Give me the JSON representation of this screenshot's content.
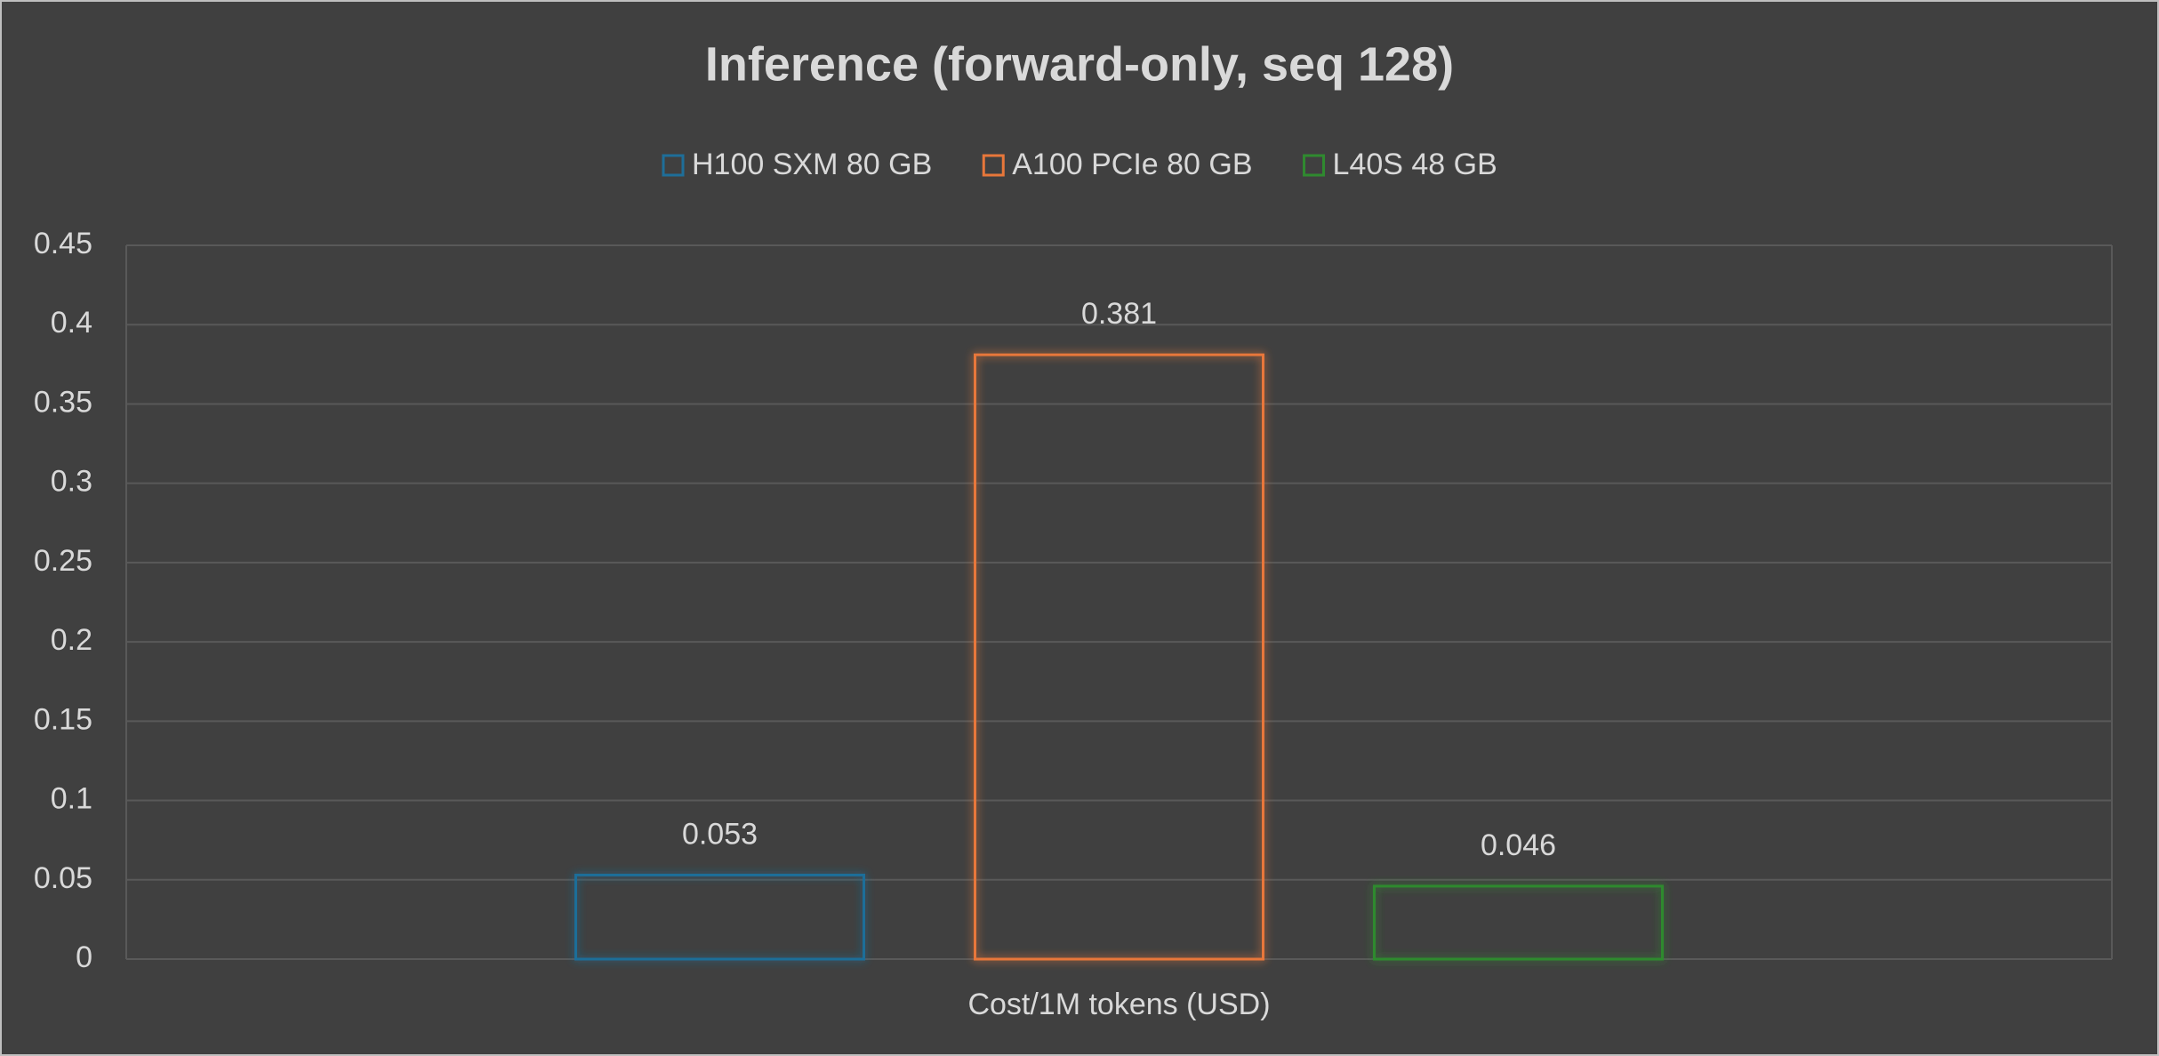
{
  "chart_data": {
    "type": "bar",
    "title": "Inference (forward-only, seq 128)",
    "categories": [
      "Cost/1M tokens (USD)"
    ],
    "series": [
      {
        "name": "H100 SXM 80 GB",
        "color": "#1e6e99",
        "values": [
          0.053
        ]
      },
      {
        "name": "A100 PCIe 80 GB",
        "color": "#e8773a",
        "values": [
          0.381
        ]
      },
      {
        "name": "L40S 48 GB",
        "color": "#2f8a2f",
        "values": [
          0.046
        ]
      }
    ],
    "ylim": [
      0,
      0.45
    ],
    "yticks": [
      0,
      0.05,
      0.1,
      0.15,
      0.2,
      0.25,
      0.3,
      0.35,
      0.4,
      0.45
    ],
    "grid": true,
    "legend": "top"
  }
}
